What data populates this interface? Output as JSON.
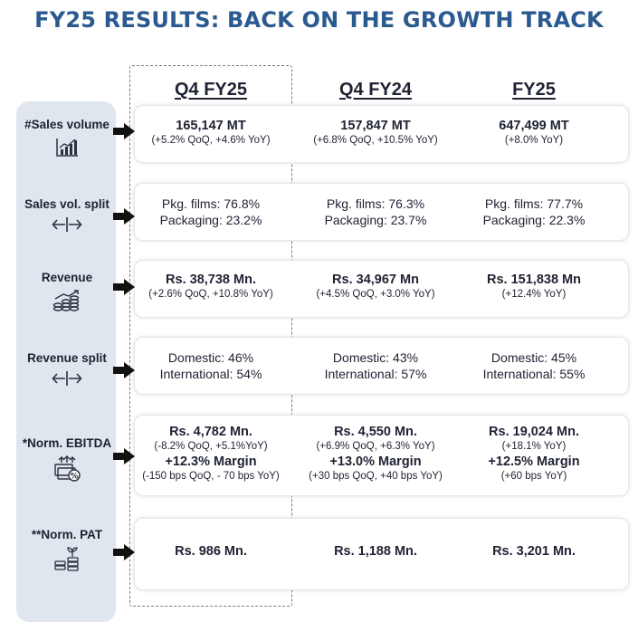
{
  "title": "FY25 RESULTS: BACK ON THE GROWTH TRACK",
  "columns": [
    "Q4 FY25",
    "Q4 FY24",
    "FY25"
  ],
  "rows": [
    {
      "label": "#Sales volume",
      "icon": "bar-chart-icon",
      "cells": [
        {
          "main": "165,147 MT",
          "sub": "(+5.2% QoQ, +4.6% YoY)"
        },
        {
          "main": "157,847 MT",
          "sub": "(+6.8% QoQ, +10.5% YoY)"
        },
        {
          "main": "647,499 MT",
          "sub": "(+8.0% YoY)"
        }
      ]
    },
    {
      "label": "Sales vol. split",
      "icon": "split-arrows-icon",
      "cells": [
        {
          "line1": "Pkg. films: 76.8%",
          "line2": "Packaging: 23.2%"
        },
        {
          "line1": "Pkg. films: 76.3%",
          "line2": "Packaging: 23.7%"
        },
        {
          "line1": "Pkg. films: 77.7%",
          "line2": "Packaging: 22.3%"
        }
      ]
    },
    {
      "label": "Revenue",
      "icon": "revenue-growth-icon",
      "cells": [
        {
          "main": "Rs. 38,738 Mn.",
          "sub": "(+2.6% QoQ, +10.8% YoY)"
        },
        {
          "main": "Rs. 34,967 Mn",
          "sub": "(+4.5% QoQ, +3.0% YoY)"
        },
        {
          "main": "Rs. 151,838 Mn",
          "sub": "(+12.4% YoY)"
        }
      ]
    },
    {
      "label": "Revenue split",
      "icon": "split-arrows-icon",
      "cells": [
        {
          "line1": "Domestic: 46%",
          "line2": "International: 54%"
        },
        {
          "line1": "Domestic: 43%",
          "line2": "International: 57%"
        },
        {
          "line1": "Domestic: 45%",
          "line2": "International: 55%"
        }
      ]
    },
    {
      "label": "*Norm. EBITDA",
      "icon": "money-percent-icon",
      "cells": [
        {
          "main": "Rs. 4,782 Mn.",
          "sub": "(-8.2% QoQ, +5.1%YoY)",
          "margin": "+12.3% Margin",
          "bps": "(-150 bps QoQ, - 70 bps YoY)"
        },
        {
          "main": "Rs. 4,550 Mn.",
          "sub": "(+6.9% QoQ, +6.3% YoY)",
          "margin": "+13.0% Margin",
          "bps": "(+30 bps QoQ, +40 bps YoY)"
        },
        {
          "main": "Rs. 19,024 Mn.",
          "sub": "(+18.1% YoY)",
          "margin": "+12.5% Margin",
          "bps": "(+60 bps YoY)"
        }
      ]
    },
    {
      "label": "**Norm. PAT",
      "icon": "coins-sprout-icon",
      "cells": [
        {
          "main": "Rs. 986 Mn."
        },
        {
          "main": "Rs. 1,188 Mn."
        },
        {
          "main": "Rs. 3,201 Mn."
        }
      ]
    }
  ]
}
